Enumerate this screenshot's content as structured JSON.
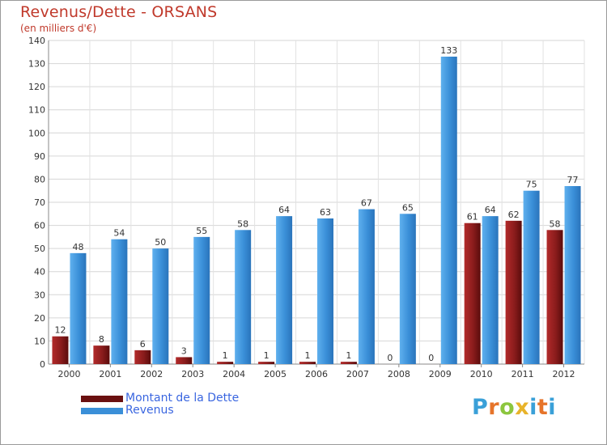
{
  "header": {
    "title": "Revenus/Dette - ORSANS",
    "subtitle": "(en milliers d'€)"
  },
  "colors": {
    "title": "#c0392b",
    "dette": "#7a1414",
    "revenus": "#3a8fd8",
    "legend_text": "#3a66e0"
  },
  "chart_data": {
    "type": "bar",
    "title": "Revenus/Dette - ORSANS",
    "subtitle": "(en milliers d'€)",
    "categories": [
      "2000",
      "2001",
      "2002",
      "2003",
      "2004",
      "2005",
      "2006",
      "2007",
      "2008",
      "2009",
      "2010",
      "2011",
      "2012"
    ],
    "series": [
      {
        "name": "Montant de la Dette",
        "values": [
          12,
          8,
          6,
          3,
          1,
          1,
          1,
          1,
          0,
          0,
          61,
          62,
          58
        ]
      },
      {
        "name": "Revenus",
        "values": [
          48,
          54,
          50,
          55,
          58,
          64,
          63,
          67,
          65,
          133,
          64,
          75,
          77
        ]
      }
    ],
    "ylim": [
      0,
      140
    ],
    "yticks": [
      0,
      10,
      20,
      30,
      40,
      50,
      60,
      70,
      80,
      90,
      100,
      110,
      120,
      130,
      140
    ],
    "grid": true,
    "legend_position": "bottom-left"
  },
  "legend": {
    "items": [
      {
        "label": "Montant de la Dette"
      },
      {
        "label": "Revenus"
      }
    ]
  },
  "logo": {
    "letters": [
      "P",
      "r",
      "o",
      "x",
      "i",
      "t",
      "i"
    ]
  }
}
